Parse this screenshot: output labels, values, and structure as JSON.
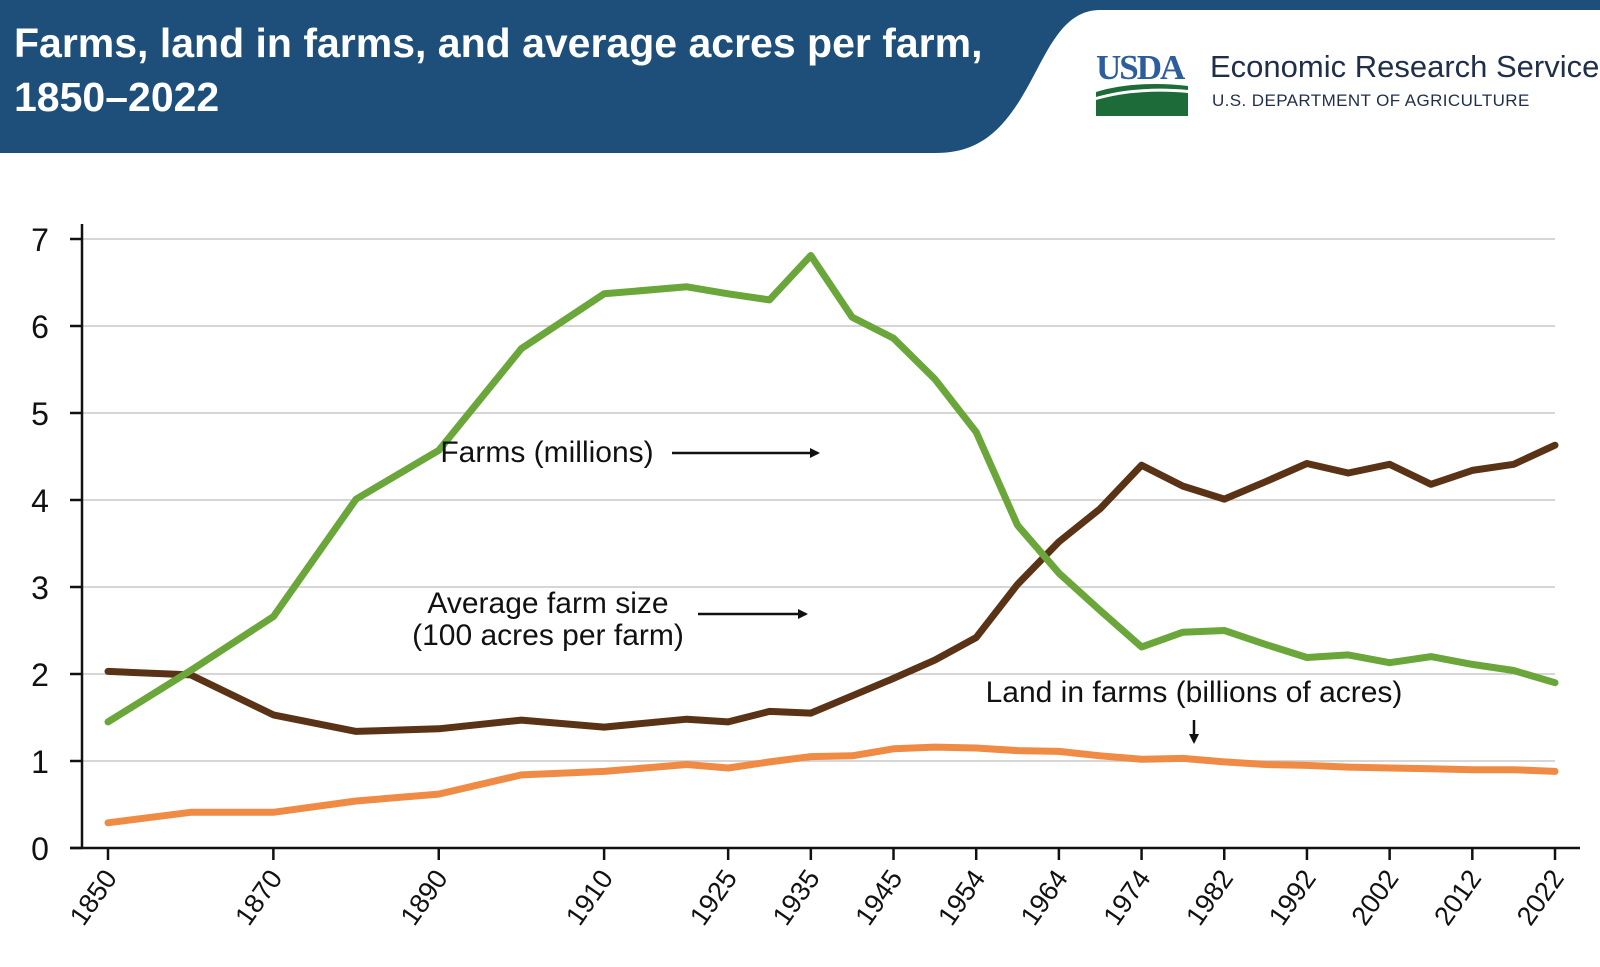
{
  "header": {
    "title": "Farms, land in farms, and average acres per farm, 1850–2022",
    "logo_text": "USDA",
    "agency": "Economic Research Service",
    "agency_sub": "U.S. DEPARTMENT OF AGRICULTURE"
  },
  "colors": {
    "header_band": "#1d4f7a",
    "farms": "#6aa63a",
    "avg_size": "#5a3216",
    "land": "#f08b45",
    "grid": "#c8c8c8",
    "logo_blue": "#2c5d9c",
    "logo_green": "#1e6b3a"
  },
  "chart_data": {
    "type": "line",
    "title": "Farms, land in farms, and average acres per farm, 1850–2022",
    "xlabel": "",
    "ylabel": "",
    "ylim": [
      0,
      7
    ],
    "yticks": [
      0,
      1,
      2,
      3,
      4,
      5,
      6,
      7
    ],
    "xtick_labels": [
      "1850",
      "1870",
      "1890",
      "1910",
      "1925",
      "1935",
      "1945",
      "1954",
      "1964",
      "1974",
      "1982",
      "1992",
      "2002",
      "2012",
      "2022"
    ],
    "grid": true,
    "x": [
      "1850",
      "1860",
      "1870",
      "1880",
      "1890",
      "1900",
      "1910",
      "1920",
      "1925",
      "1930",
      "1935",
      "1940",
      "1945",
      "1950",
      "1954",
      "1959",
      "1964",
      "1969",
      "1974",
      "1978",
      "1982",
      "1987",
      "1992",
      "1997",
      "2002",
      "2007",
      "2012",
      "2017",
      "2022"
    ],
    "series": [
      {
        "name": "Farms (millions)",
        "color": "#6aa63a",
        "values": [
          1.45,
          2.04,
          2.66,
          4.01,
          4.57,
          5.74,
          6.37,
          6.45,
          6.37,
          6.3,
          6.81,
          6.1,
          5.86,
          5.39,
          4.78,
          3.71,
          3.16,
          2.73,
          2.31,
          2.48,
          2.5,
          2.34,
          2.19,
          2.22,
          2.13,
          2.2,
          2.11,
          2.04,
          1.9
        ]
      },
      {
        "name": "Average farm size (100 acres per farm)",
        "color": "#5a3216",
        "values": [
          2.03,
          1.99,
          1.53,
          1.34,
          1.37,
          1.47,
          1.39,
          1.48,
          1.45,
          1.57,
          1.55,
          1.75,
          1.95,
          2.16,
          2.42,
          3.03,
          3.52,
          3.9,
          4.4,
          4.16,
          4.01,
          4.21,
          4.42,
          4.31,
          4.41,
          4.18,
          4.34,
          4.41,
          4.63
        ]
      },
      {
        "name": "Land in farms (billions of acres)",
        "color": "#f08b45",
        "values": [
          0.29,
          0.41,
          0.41,
          0.54,
          0.62,
          0.84,
          0.88,
          0.96,
          0.92,
          0.99,
          1.05,
          1.06,
          1.14,
          1.16,
          1.15,
          1.12,
          1.11,
          1.06,
          1.02,
          1.03,
          0.99,
          0.96,
          0.95,
          0.93,
          0.92,
          0.91,
          0.9,
          0.9,
          0.88
        ]
      }
    ],
    "annotations": [
      {
        "lines": [
          "Farms (millions)"
        ],
        "series": 0
      },
      {
        "lines": [
          "Average farm size",
          "(100 acres per farm)"
        ],
        "series": 1
      },
      {
        "lines": [
          "Land in farms (billions of acres)"
        ],
        "series": 2
      }
    ]
  }
}
